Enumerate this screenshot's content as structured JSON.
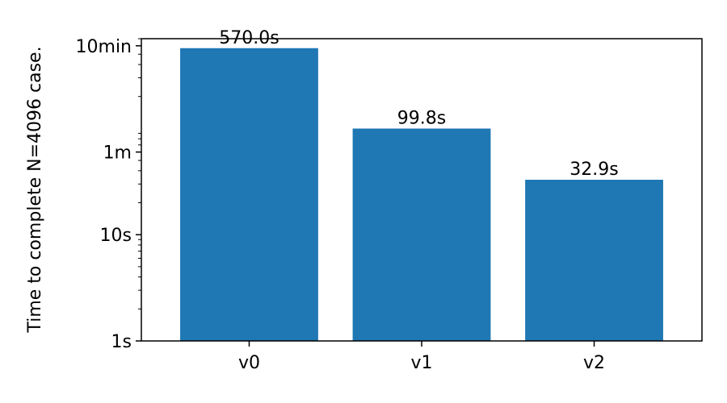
{
  "chart_data": {
    "type": "bar",
    "scale": "log",
    "ylabel": "Time to complete N=4096 case.",
    "xlabel": "",
    "title": "",
    "categories": [
      "v0",
      "v1",
      "v2"
    ],
    "values": [
      570.0,
      99.8,
      32.9
    ],
    "value_labels": [
      "570.0s",
      "99.8s",
      "32.9s"
    ],
    "value_unit": "seconds",
    "ylim": [
      1,
      700
    ],
    "yticks": [
      {
        "value": 1,
        "label": "1s"
      },
      {
        "value": 10,
        "label": "10s"
      },
      {
        "value": 60,
        "label": "1m"
      },
      {
        "value": 600,
        "label": "10min"
      }
    ],
    "grid": false,
    "legend": "none",
    "bar_color": "#1f77b4"
  }
}
